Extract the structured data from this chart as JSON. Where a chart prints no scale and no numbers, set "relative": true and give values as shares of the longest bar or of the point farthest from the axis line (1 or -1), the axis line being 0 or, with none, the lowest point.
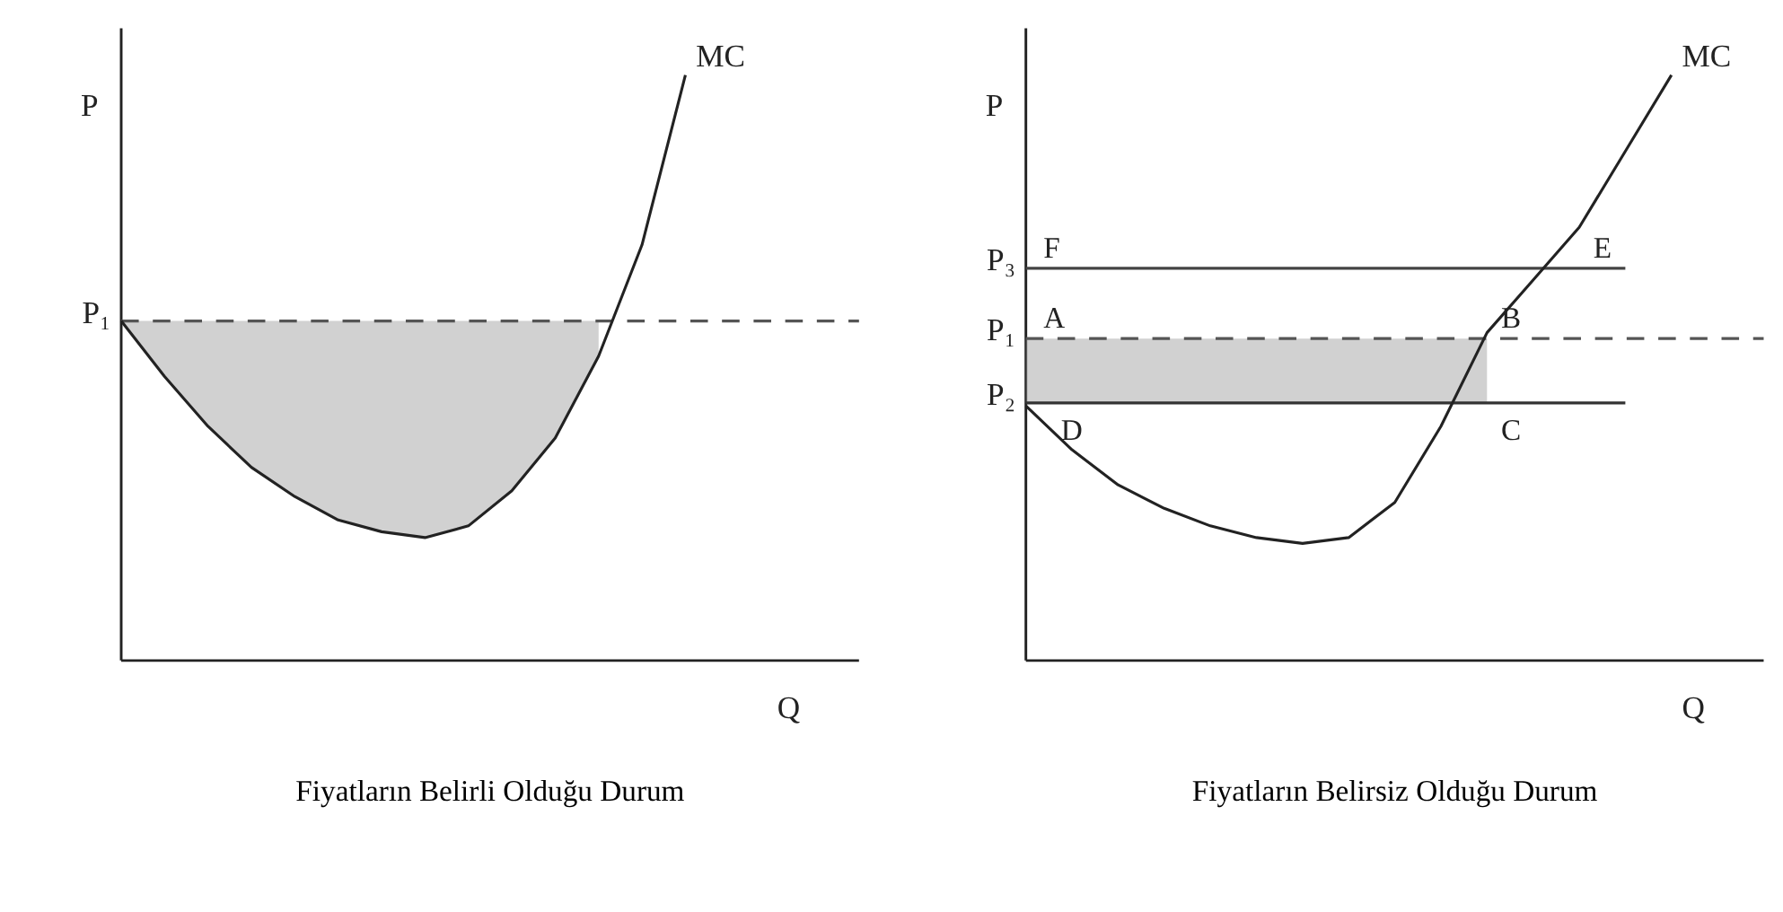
{
  "chart_data": [
    {
      "type": "line",
      "title": "Fiyatların Belirli Olduğu Durum",
      "xlabel": "Q",
      "ylabel": "P",
      "relative": true,
      "tick_labels": false,
      "grid": false,
      "categories": [
        null,
        null,
        null,
        null,
        null,
        null,
        null,
        null,
        null,
        null,
        null,
        null,
        null,
        null,
        null,
        null,
        null,
        null
      ],
      "series": [
        {
          "name": "P₁",
          "color": "#555555",
          "line_style": "dashed",
          "values": [
            0.58,
            0.58,
            0.58,
            0.58,
            0.58,
            0.58,
            0.58,
            0.58,
            0.58,
            0.58,
            0.58,
            0.58,
            0.58,
            0.58,
            0.58,
            0.58,
            0.58,
            0.58
          ],
          "lower": [
            0.58,
            0.485,
            0.4,
            0.33,
            0.28,
            0.24,
            0.22,
            0.21,
            0.23,
            0.29,
            0.38,
            0.52,
            null,
            null,
            null,
            null,
            null,
            null
          ],
          "upper": [
            0.58,
            0.58,
            0.58,
            0.58,
            0.58,
            0.58,
            0.58,
            0.58,
            0.58,
            0.58,
            0.58,
            0.58,
            null,
            null,
            null,
            null,
            null,
            null
          ]
        },
        {
          "name": "MC",
          "color": "#222222",
          "line_style": "solid",
          "values": [
            0.58,
            0.485,
            0.4,
            0.33,
            0.28,
            0.24,
            0.22,
            0.21,
            0.23,
            0.29,
            0.38,
            0.52,
            0.71,
            1.0,
            null,
            null,
            null,
            null
          ]
        }
      ]
    },
    {
      "type": "line",
      "title": "Fiyatların Belirsiz Olduğu  Durum",
      "xlabel": "Q",
      "ylabel": "P",
      "relative": true,
      "tick_labels": false,
      "grid": false,
      "categories": [
        null,
        null,
        null,
        null,
        null,
        null,
        null,
        null,
        null,
        null,
        null,
        null,
        null,
        null,
        null,
        null,
        null
      ],
      "series": [
        {
          "name": "P₃",
          "color": "#444444",
          "line_style": "solid",
          "values": [
            0.67,
            0.67,
            0.67,
            0.67,
            0.67,
            0.67,
            0.67,
            0.67,
            0.67,
            0.67,
            0.67,
            0.67,
            0.67,
            0.67,
            null,
            null,
            null
          ]
        },
        {
          "name": "P₁",
          "color": "#555555",
          "line_style": "dashed",
          "values": [
            0.55,
            0.55,
            0.55,
            0.55,
            0.55,
            0.55,
            0.55,
            0.55,
            0.55,
            0.55,
            0.55,
            0.55,
            0.55,
            0.55,
            0.55,
            0.55,
            0.55
          ],
          "lower": [
            0.44,
            0.44,
            0.44,
            0.44,
            0.44,
            0.44,
            0.44,
            0.44,
            0.44,
            0.44,
            0.44,
            null,
            null,
            null,
            null,
            null,
            null
          ],
          "upper": [
            0.55,
            0.55,
            0.55,
            0.55,
            0.55,
            0.55,
            0.55,
            0.55,
            0.55,
            0.55,
            0.55,
            null,
            null,
            null,
            null,
            null,
            null
          ]
        },
        {
          "name": "P₂",
          "color": "#333333",
          "line_style": "solid",
          "values": [
            0.44,
            0.44,
            0.44,
            0.44,
            0.44,
            0.44,
            0.44,
            0.44,
            0.44,
            0.44,
            0.44,
            0.44,
            0.44,
            0.44,
            null,
            null,
            null
          ]
        },
        {
          "name": "MC",
          "color": "#222222",
          "line_style": "solid",
          "values": [
            0.435,
            0.36,
            0.3,
            0.26,
            0.23,
            0.21,
            0.2,
            0.21,
            0.27,
            0.4,
            0.56,
            0.65,
            0.74,
            0.87,
            1.0,
            null,
            null
          ]
        }
      ],
      "annotations": [
        {
          "text": "F",
          "y": 0.67
        },
        {
          "text": "A",
          "y": 0.55
        },
        {
          "text": "B",
          "y": 0.55
        },
        {
          "text": "D",
          "y": 0.44
        },
        {
          "text": "C",
          "y": 0.44
        },
        {
          "text": "E",
          "y": 0.67
        }
      ]
    }
  ]
}
